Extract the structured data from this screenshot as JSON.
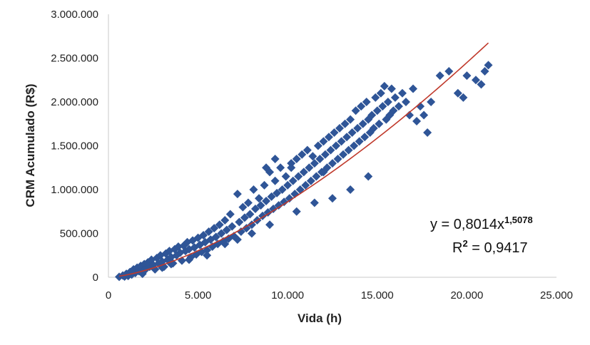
{
  "chart_data": {
    "type": "scatter",
    "xlabel": "Vida (h)",
    "ylabel": "CRM Acumulado (R$)",
    "xlim": [
      0,
      25000
    ],
    "ylim": [
      0,
      3000000
    ],
    "x_ticks": [
      "0",
      "5.000",
      "10.000",
      "15.000",
      "20.000",
      "25.000"
    ],
    "y_ticks": [
      "0",
      "500.000",
      "1.000.000",
      "1.500.000",
      "2.000.000",
      "2.500.000",
      "3.000.000"
    ],
    "grid": false,
    "legend": "none",
    "point_color": "#2f5597",
    "trendline": {
      "type": "power",
      "coefficient": 0.8014,
      "exponent": 1.5078,
      "color": "#c0392b",
      "x_range": [
        600,
        21200
      ],
      "equation_prefix": "y = 0,8014x",
      "equation_exponent": "1,5078",
      "r2_prefix": "R",
      "r2_sup": "2",
      "r2_value": " = 0,9417"
    },
    "series": [
      {
        "points": [
          [
            600,
            5000
          ],
          [
            800,
            20000
          ],
          [
            900,
            8000
          ],
          [
            1000,
            40000
          ],
          [
            1100,
            15000
          ],
          [
            1200,
            60000
          ],
          [
            1300,
            30000
          ],
          [
            1400,
            90000
          ],
          [
            1500,
            50000
          ],
          [
            1600,
            110000
          ],
          [
            1700,
            70000
          ],
          [
            1800,
            130000
          ],
          [
            1900,
            40000
          ],
          [
            2000,
            150000
          ],
          [
            2100,
            95000
          ],
          [
            2200,
            170000
          ],
          [
            2300,
            120000
          ],
          [
            2400,
            200000
          ],
          [
            2500,
            140000
          ],
          [
            2600,
            90000
          ],
          [
            2700,
            220000
          ],
          [
            2800,
            160000
          ],
          [
            2900,
            250000
          ],
          [
            3000,
            180000
          ],
          [
            3100,
            120000
          ],
          [
            3200,
            270000
          ],
          [
            3300,
            200000
          ],
          [
            3400,
            300000
          ],
          [
            3500,
            230000
          ],
          [
            3600,
            160000
          ],
          [
            3700,
            320000
          ],
          [
            3800,
            250000
          ],
          [
            3900,
            350000
          ],
          [
            4000,
            280000
          ],
          [
            4100,
            190000
          ],
          [
            4200,
            360000
          ],
          [
            4300,
            300000
          ],
          [
            4400,
            400000
          ],
          [
            4500,
            320000
          ],
          [
            4600,
            230000
          ],
          [
            4700,
            420000
          ],
          [
            4800,
            340000
          ],
          [
            4900,
            260000
          ],
          [
            5000,
            450000
          ],
          [
            5100,
            370000
          ],
          [
            5200,
            290000
          ],
          [
            5300,
            480000
          ],
          [
            5400,
            400000
          ],
          [
            5500,
            310000
          ],
          [
            5600,
            520000
          ],
          [
            5700,
            430000
          ],
          [
            5800,
            350000
          ],
          [
            5900,
            560000
          ],
          [
            6000,
            460000
          ],
          [
            6100,
            380000
          ],
          [
            6200,
            600000
          ],
          [
            6300,
            500000
          ],
          [
            6400,
            410000
          ],
          [
            6500,
            650000
          ],
          [
            6600,
            540000
          ],
          [
            6700,
            440000
          ],
          [
            6800,
            720000
          ],
          [
            6900,
            580000
          ],
          [
            7000,
            470000
          ],
          [
            7200,
            950000
          ],
          [
            7300,
            630000
          ],
          [
            7400,
            520000
          ],
          [
            7500,
            800000
          ],
          [
            7600,
            680000
          ],
          [
            7700,
            560000
          ],
          [
            7800,
            850000
          ],
          [
            7900,
            720000
          ],
          [
            8000,
            600000
          ],
          [
            8100,
            1000000
          ],
          [
            8200,
            780000
          ],
          [
            8300,
            650000
          ],
          [
            8400,
            900000
          ],
          [
            8500,
            820000
          ],
          [
            8600,
            700000
          ],
          [
            8700,
            1050000
          ],
          [
            8800,
            870000
          ],
          [
            8900,
            740000
          ],
          [
            9000,
            1200000
          ],
          [
            9100,
            920000
          ],
          [
            9200,
            780000
          ],
          [
            9300,
            1100000
          ],
          [
            9400,
            960000
          ],
          [
            9500,
            820000
          ],
          [
            9600,
            1250000
          ],
          [
            9700,
            1000000
          ],
          [
            9800,
            860000
          ],
          [
            9900,
            1150000
          ],
          [
            10000,
            1050000
          ],
          [
            10100,
            900000
          ],
          [
            10200,
            1300000
          ],
          [
            10300,
            1100000
          ],
          [
            10400,
            950000
          ],
          [
            10500,
            1350000
          ],
          [
            10600,
            1150000
          ],
          [
            10700,
            1000000
          ],
          [
            10800,
            1400000
          ],
          [
            10900,
            1200000
          ],
          [
            11000,
            1050000
          ],
          [
            11100,
            1450000
          ],
          [
            11200,
            1250000
          ],
          [
            11300,
            1100000
          ],
          [
            11400,
            1380000
          ],
          [
            11500,
            1300000
          ],
          [
            11600,
            1150000
          ],
          [
            11700,
            1500000
          ],
          [
            11800,
            1350000
          ],
          [
            11900,
            1200000
          ],
          [
            12000,
            1550000
          ],
          [
            12100,
            1400000
          ],
          [
            12200,
            1250000
          ],
          [
            12300,
            1600000
          ],
          [
            12400,
            1450000
          ],
          [
            12500,
            1300000
          ],
          [
            12600,
            1650000
          ],
          [
            12700,
            1500000
          ],
          [
            12800,
            1350000
          ],
          [
            12900,
            1700000
          ],
          [
            13000,
            1550000
          ],
          [
            13100,
            1400000
          ],
          [
            13200,
            1750000
          ],
          [
            13300,
            1600000
          ],
          [
            13400,
            1450000
          ],
          [
            13500,
            1800000
          ],
          [
            13600,
            1650000
          ],
          [
            13700,
            1500000
          ],
          [
            13800,
            1900000
          ],
          [
            13900,
            1700000
          ],
          [
            14000,
            1550000
          ],
          [
            14100,
            1950000
          ],
          [
            14200,
            1750000
          ],
          [
            14300,
            1600000
          ],
          [
            14400,
            2000000
          ],
          [
            14500,
            1800000
          ],
          [
            14600,
            1650000
          ],
          [
            14700,
            1850000
          ],
          [
            14800,
            1700000
          ],
          [
            14900,
            2050000
          ],
          [
            15000,
            1900000
          ],
          [
            15100,
            1750000
          ],
          [
            15200,
            2100000
          ],
          [
            15300,
            1950000
          ],
          [
            15400,
            2180000
          ],
          [
            15500,
            1800000
          ],
          [
            15600,
            2000000
          ],
          [
            15700,
            1850000
          ],
          [
            15800,
            2150000
          ],
          [
            15900,
            1900000
          ],
          [
            16000,
            2050000
          ],
          [
            16200,
            1950000
          ],
          [
            16400,
            2100000
          ],
          [
            16600,
            2000000
          ],
          [
            16800,
            1850000
          ],
          [
            17000,
            2150000
          ],
          [
            17200,
            1780000
          ],
          [
            17400,
            1950000
          ],
          [
            17600,
            1850000
          ],
          [
            17800,
            1650000
          ],
          [
            18000,
            2000000
          ],
          [
            18500,
            2300000
          ],
          [
            19000,
            2350000
          ],
          [
            19500,
            2100000
          ],
          [
            19800,
            2050000
          ],
          [
            20000,
            2300000
          ],
          [
            20500,
            2250000
          ],
          [
            20800,
            2200000
          ],
          [
            21000,
            2350000
          ],
          [
            21200,
            2420000
          ],
          [
            6500,
            380000
          ],
          [
            7200,
            430000
          ],
          [
            8000,
            500000
          ],
          [
            9000,
            600000
          ],
          [
            10500,
            750000
          ],
          [
            11500,
            850000
          ],
          [
            12500,
            900000
          ],
          [
            13500,
            1000000
          ],
          [
            14500,
            1150000
          ],
          [
            3500,
            150000
          ],
          [
            4500,
            200000
          ],
          [
            5500,
            250000
          ],
          [
            2000,
            80000
          ],
          [
            3000,
            110000
          ],
          [
            8800,
            1250000
          ],
          [
            9300,
            1350000
          ],
          [
            10200,
            1250000
          ],
          [
            12000,
            1200000
          ]
        ]
      }
    ]
  }
}
